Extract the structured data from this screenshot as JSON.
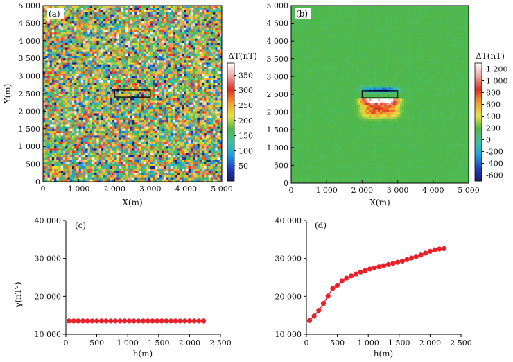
{
  "chart_data": [
    {
      "id": "a",
      "type": "heatmap",
      "panel_label": "(a)",
      "xlabel": "X(m)",
      "ylabel": "Y(m)",
      "xlim": [
        0,
        5000
      ],
      "ylim": [
        0,
        5000
      ],
      "xticks": [
        "0",
        "1 000",
        "2 000",
        "3 000",
        "4 000",
        "5 000"
      ],
      "yticks": [
        "0",
        "500",
        "1 000",
        "1 500",
        "2 000",
        "2 500",
        "3 000",
        "3 500",
        "4 000",
        "4 500",
        "5 000"
      ],
      "field": "random noise field",
      "colorbar": {
        "title": "ΔT(nT)",
        "range": [
          0,
          390
        ],
        "ticks": [
          "50",
          "100",
          "150",
          "200",
          "250",
          "300",
          "350"
        ],
        "colors": [
          "#1b1b6b",
          "#2040c0",
          "#20a0e0",
          "#40c0a0",
          "#50b848",
          "#e8e040",
          "#f0a030",
          "#e03020",
          "#f0a0a0",
          "#ffffff"
        ]
      },
      "box": {
        "x": [
          2000,
          3000
        ],
        "y": [
          2400,
          2600
        ]
      }
    },
    {
      "id": "b",
      "type": "heatmap",
      "panel_label": "(b)",
      "xlabel": "X(m)",
      "ylabel": "",
      "xlim": [
        0,
        5000
      ],
      "ylim": [
        0,
        5000
      ],
      "xticks": [
        "0",
        "1 000",
        "2 000",
        "3 000",
        "4 000",
        "5 000"
      ],
      "yticks": [
        "0",
        "500",
        "1 000",
        "1 500",
        "2 000",
        "2 500",
        "3 000",
        "3 500",
        "4 000",
        "4 500",
        "5 000"
      ],
      "field": "dipole anomaly of the boxed body",
      "colorbar": {
        "title": "ΔT(nT)",
        "range": [
          -700,
          1300
        ],
        "ticks": [
          "-600",
          "-400",
          "-200",
          "0",
          "200",
          "400",
          "600",
          "800",
          "1 000",
          "1 200"
        ],
        "colors": [
          "#1b1b6b",
          "#2040c0",
          "#20a0e0",
          "#40c0a0",
          "#50b848",
          "#e8e040",
          "#f0a030",
          "#e03020",
          "#f0a0a0",
          "#ffffff"
        ]
      },
      "box": {
        "x": [
          2000,
          3000
        ],
        "y": [
          2400,
          2600
        ]
      }
    },
    {
      "id": "c",
      "type": "scatter",
      "panel_label": "(c)",
      "xlabel": "h(m)",
      "ylabel": "γ(nT²)",
      "xlim": [
        0,
        2500
      ],
      "ylim": [
        10000,
        40000
      ],
      "xticks": [
        "0",
        "500",
        "1 000",
        "1 500",
        "2 000",
        "2 500"
      ],
      "yticks": [
        "10 000",
        "20 000",
        "30 000",
        "40 000"
      ],
      "series": [
        {
          "x": [
            50,
            125,
            200,
            275,
            350,
            425,
            500,
            575,
            650,
            725,
            800,
            875,
            950,
            1025,
            1100,
            1175,
            1250,
            1325,
            1400,
            1475,
            1550,
            1625,
            1700,
            1775,
            1850,
            1925,
            2000,
            2075,
            2150,
            2225
          ],
          "y": [
            13500,
            13500,
            13500,
            13500,
            13500,
            13500,
            13500,
            13500,
            13500,
            13500,
            13500,
            13500,
            13500,
            13500,
            13500,
            13500,
            13500,
            13500,
            13500,
            13500,
            13500,
            13500,
            13500,
            13500,
            13500,
            13500,
            13500,
            13500,
            13500,
            13500
          ]
        }
      ]
    },
    {
      "id": "d",
      "type": "line",
      "panel_label": "(d)",
      "xlabel": "h(m)",
      "ylabel": "",
      "xlim": [
        0,
        2500
      ],
      "ylim": [
        10000,
        40000
      ],
      "xticks": [
        "0",
        "500",
        "1 000",
        "1 500",
        "2 000",
        "2 500"
      ],
      "yticks": [
        "10 000",
        "20 000",
        "30 000",
        "40 000"
      ],
      "series": [
        {
          "x": [
            50,
            125,
            200,
            275,
            350,
            425,
            500,
            575,
            650,
            725,
            800,
            875,
            950,
            1025,
            1100,
            1175,
            1250,
            1325,
            1400,
            1475,
            1550,
            1625,
            1700,
            1775,
            1850,
            1925,
            2000,
            2075,
            2150,
            2225
          ],
          "y": [
            13600,
            14800,
            16300,
            18100,
            20100,
            22100,
            22900,
            24100,
            24800,
            25400,
            25900,
            26400,
            26800,
            27200,
            27500,
            27800,
            28100,
            28400,
            28700,
            29000,
            29300,
            29700,
            30100,
            30500,
            30900,
            31400,
            31900,
            32300,
            32500,
            32600
          ]
        }
      ]
    }
  ]
}
